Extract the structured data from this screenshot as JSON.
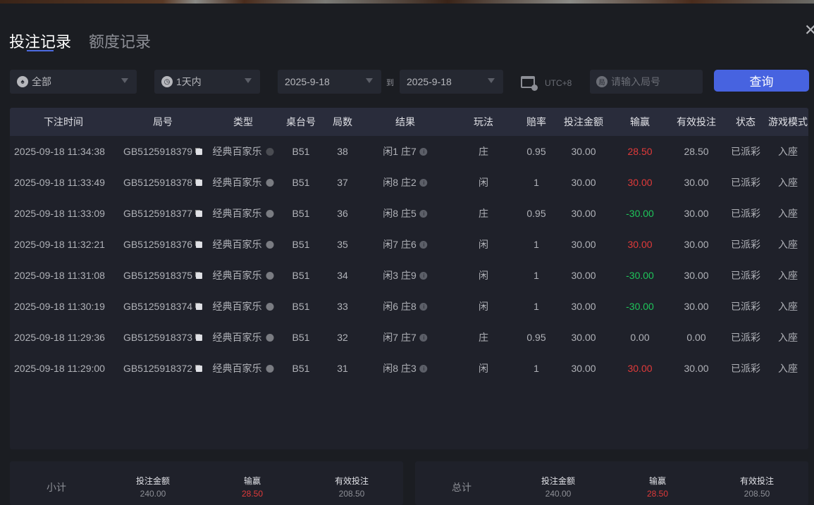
{
  "tabs": [
    {
      "label": "投注记录",
      "active": true
    },
    {
      "label": "额度记录",
      "active": false
    }
  ],
  "filters": {
    "game": "全部",
    "period": "1天内",
    "date_from": "2025-9-18",
    "to_label": "到",
    "date_to": "2025-9-18",
    "timezone": "UTC+8",
    "round_placeholder": "请输入局号",
    "round_icon_text": "局",
    "query_label": "查询"
  },
  "columns": [
    "下注时间",
    "局号",
    "类型",
    "桌台号",
    "局数",
    "结果",
    "玩法",
    "赔率",
    "投注金额",
    "输赢",
    "有效投注",
    "状态",
    "游戏模式"
  ],
  "rows": [
    [
      "2025-09-18 11:34:38",
      "GB5125918379",
      "经典百家乐",
      "B51",
      "38",
      "闲1 庄7",
      "庄",
      "0.95",
      "30.00",
      "28.50",
      "28.50",
      "已派彩",
      "入座"
    ],
    [
      "2025-09-18 11:33:49",
      "GB5125918378",
      "经典百家乐",
      "B51",
      "37",
      "闲8 庄2",
      "闲",
      "1",
      "30.00",
      "30.00",
      "30.00",
      "已派彩",
      "入座"
    ],
    [
      "2025-09-18 11:33:09",
      "GB5125918377",
      "经典百家乐",
      "B51",
      "36",
      "闲8 庄5",
      "庄",
      "0.95",
      "30.00",
      "-30.00",
      "30.00",
      "已派彩",
      "入座"
    ],
    [
      "2025-09-18 11:32:21",
      "GB5125918376",
      "经典百家乐",
      "B51",
      "35",
      "闲7 庄6",
      "闲",
      "1",
      "30.00",
      "30.00",
      "30.00",
      "已派彩",
      "入座"
    ],
    [
      "2025-09-18 11:31:08",
      "GB5125918375",
      "经典百家乐",
      "B51",
      "34",
      "闲3 庄9",
      "闲",
      "1",
      "30.00",
      "-30.00",
      "30.00",
      "已派彩",
      "入座"
    ],
    [
      "2025-09-18 11:30:19",
      "GB5125918374",
      "经典百家乐",
      "B51",
      "33",
      "闲6 庄8",
      "闲",
      "1",
      "30.00",
      "-30.00",
      "30.00",
      "已派彩",
      "入座"
    ],
    [
      "2025-09-18 11:29:36",
      "GB5125918373",
      "经典百家乐",
      "B51",
      "32",
      "闲7 庄7",
      "庄",
      "0.95",
      "30.00",
      "0.00",
      "0.00",
      "已派彩",
      "入座"
    ],
    [
      "2025-09-18 11:29:00",
      "GB5125918372",
      "经典百家乐",
      "B51",
      "31",
      "闲8 庄3",
      "闲",
      "1",
      "30.00",
      "30.00",
      "30.00",
      "已派彩",
      "入座"
    ]
  ],
  "subtotal": {
    "label": "小计",
    "bet_label": "投注金额",
    "bet": "240.00",
    "win_label": "输赢",
    "win": "28.50",
    "valid_label": "有效投注",
    "valid": "208.50"
  },
  "total": {
    "label": "总计",
    "bet_label": "投注金额",
    "bet": "240.00",
    "win_label": "输赢",
    "win": "28.50",
    "valid_label": "有效投注",
    "valid": "208.50"
  },
  "colors": {
    "accent": "#4763e0",
    "win": "#e03a3a",
    "loss": "#1fc45a"
  }
}
